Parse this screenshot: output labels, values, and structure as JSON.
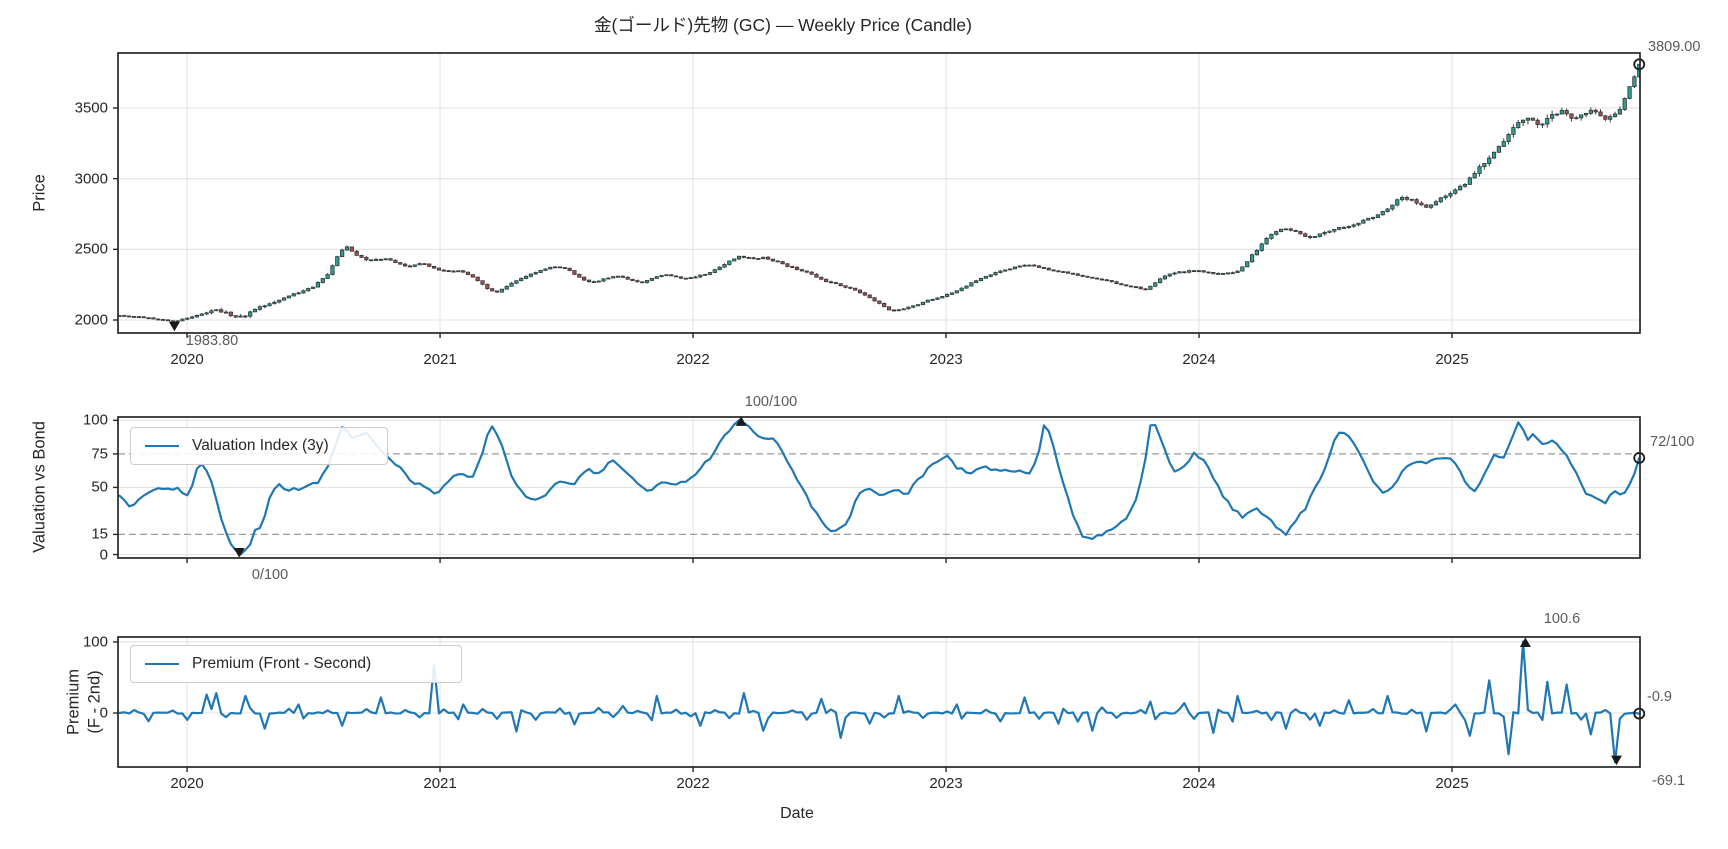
{
  "figure": {
    "title": "金(ゴールド)先物 (GC) — Weekly Price (Candle)",
    "xlabel": "Date",
    "background": "#ffffff",
    "accent_blue": "#1f77b4",
    "up_color": "#2f9e92",
    "down_color": "#a8524c",
    "wick_color": "#3c4043",
    "grid_color": "#e3e3e3",
    "dashed_color": "#9b9b9b",
    "spine_color": "#262626",
    "annotation_color": "#5a5a5a",
    "marker_color": "#1a1a1a"
  },
  "chart_data": [
    {
      "type": "candlestick",
      "title": "金(ゴールド)先物 (GC) — Weekly Price (Candle)",
      "ylabel": "Price",
      "freq": "weekly",
      "x_range": [
        2019.727,
        2025.743
      ],
      "ylim": [
        1908,
        3889
      ],
      "yticks": [
        2000,
        2500,
        3000,
        3500
      ],
      "xticks": [
        2020,
        2021,
        2022,
        2023,
        2024,
        2025
      ],
      "grid": true,
      "close_anchors": [
        [
          2019.73,
          2032
        ],
        [
          2019.78,
          2026
        ],
        [
          2019.84,
          2015
        ],
        [
          2019.9,
          2002
        ],
        [
          2019.95,
          1990
        ],
        [
          2020,
          2012
        ],
        [
          2020.06,
          2048
        ],
        [
          2020.12,
          2070
        ],
        [
          2020.18,
          2034
        ],
        [
          2020.22,
          2022
        ],
        [
          2020.28,
          2088
        ],
        [
          2020.35,
          2130
        ],
        [
          2020.42,
          2180
        ],
        [
          2020.5,
          2235
        ],
        [
          2020.56,
          2330
        ],
        [
          2020.6,
          2470
        ],
        [
          2020.63,
          2520
        ],
        [
          2020.67,
          2455
        ],
        [
          2020.72,
          2420
        ],
        [
          2020.78,
          2435
        ],
        [
          2020.83,
          2400
        ],
        [
          2020.88,
          2380
        ],
        [
          2020.93,
          2398
        ],
        [
          2020.98,
          2362
        ],
        [
          2021.03,
          2342
        ],
        [
          2021.08,
          2352
        ],
        [
          2021.13,
          2302
        ],
        [
          2021.18,
          2232
        ],
        [
          2021.22,
          2195
        ],
        [
          2021.28,
          2255
        ],
        [
          2021.34,
          2312
        ],
        [
          2021.4,
          2352
        ],
        [
          2021.45,
          2382
        ],
        [
          2021.5,
          2360
        ],
        [
          2021.55,
          2302
        ],
        [
          2021.6,
          2262
        ],
        [
          2021.65,
          2292
        ],
        [
          2021.7,
          2312
        ],
        [
          2021.75,
          2282
        ],
        [
          2021.8,
          2262
        ],
        [
          2021.85,
          2302
        ],
        [
          2021.9,
          2322
        ],
        [
          2021.95,
          2292
        ],
        [
          2022,
          2302
        ],
        [
          2022.06,
          2332
        ],
        [
          2022.12,
          2392
        ],
        [
          2022.18,
          2452
        ],
        [
          2022.23,
          2432
        ],
        [
          2022.28,
          2442
        ],
        [
          2022.33,
          2412
        ],
        [
          2022.39,
          2372
        ],
        [
          2022.45,
          2340
        ],
        [
          2022.51,
          2282
        ],
        [
          2022.57,
          2252
        ],
        [
          2022.63,
          2222
        ],
        [
          2022.68,
          2172
        ],
        [
          2022.73,
          2122
        ],
        [
          2022.78,
          2062
        ],
        [
          2022.83,
          2082
        ],
        [
          2022.88,
          2102
        ],
        [
          2022.93,
          2142
        ],
        [
          2022.98,
          2162
        ],
        [
          2023.04,
          2202
        ],
        [
          2023.09,
          2252
        ],
        [
          2023.15,
          2302
        ],
        [
          2023.21,
          2342
        ],
        [
          2023.27,
          2372
        ],
        [
          2023.33,
          2392
        ],
        [
          2023.39,
          2362
        ],
        [
          2023.45,
          2342
        ],
        [
          2023.51,
          2322
        ],
        [
          2023.57,
          2302
        ],
        [
          2023.63,
          2282
        ],
        [
          2023.69,
          2252
        ],
        [
          2023.75,
          2232
        ],
        [
          2023.79,
          2212
        ],
        [
          2023.84,
          2282
        ],
        [
          2023.89,
          2332
        ],
        [
          2023.94,
          2342
        ],
        [
          2023.99,
          2352
        ],
        [
          2024.05,
          2332
        ],
        [
          2024.1,
          2322
        ],
        [
          2024.16,
          2352
        ],
        [
          2024.22,
          2480
        ],
        [
          2024.28,
          2600
        ],
        [
          2024.33,
          2652
        ],
        [
          2024.38,
          2622
        ],
        [
          2024.44,
          2582
        ],
        [
          2024.5,
          2622
        ],
        [
          2024.56,
          2652
        ],
        [
          2024.62,
          2682
        ],
        [
          2024.68,
          2722
        ],
        [
          2024.74,
          2782
        ],
        [
          2024.8,
          2872
        ],
        [
          2024.85,
          2842
        ],
        [
          2024.9,
          2792
        ],
        [
          2024.95,
          2862
        ],
        [
          2025,
          2902
        ],
        [
          2025.05,
          2962
        ],
        [
          2025.1,
          3062
        ],
        [
          2025.15,
          3152
        ],
        [
          2025.2,
          3262
        ],
        [
          2025.25,
          3382
        ],
        [
          2025.3,
          3422
        ],
        [
          2025.35,
          3382
        ],
        [
          2025.4,
          3452
        ],
        [
          2025.44,
          3482
        ],
        [
          2025.48,
          3422
        ],
        [
          2025.52,
          3462
        ],
        [
          2025.56,
          3482
        ],
        [
          2025.6,
          3422
        ],
        [
          2025.64,
          3442
        ],
        [
          2025.67,
          3502
        ],
        [
          2025.7,
          3642
        ],
        [
          2025.72,
          3722
        ],
        [
          2025.74,
          3809
        ]
      ],
      "volatility_anchors": [
        [
          2019.73,
          0.45
        ],
        [
          2019.95,
          0.5
        ],
        [
          2020.18,
          1.7
        ],
        [
          2020.4,
          0.8
        ],
        [
          2020.63,
          1.1
        ],
        [
          2021,
          0.7
        ],
        [
          2021.5,
          0.7
        ],
        [
          2022.2,
          0.8
        ],
        [
          2022.8,
          0.7
        ],
        [
          2023.5,
          0.55
        ],
        [
          2024.2,
          0.9
        ],
        [
          2024.8,
          1
        ],
        [
          2025.3,
          1.9
        ],
        [
          2025.55,
          1.4
        ],
        [
          2025.74,
          1.2
        ]
      ],
      "markers": {
        "low": {
          "t": 2019.95,
          "value": 1983.8,
          "label": "1983.80"
        },
        "last": {
          "t": 2025.74,
          "value": 3809.0,
          "label": "3809.00"
        }
      }
    },
    {
      "type": "line",
      "name": "Valuation Index (3y)",
      "ylabel": "Valuation vs Bond",
      "ylim": [
        -2.6,
        102.5
      ],
      "yticks": [
        0,
        15,
        50,
        75,
        100
      ],
      "grid_yticks": [
        0,
        50,
        100
      ],
      "dashed_levels": [
        15,
        75
      ],
      "legend_position": "upper left",
      "anchors": [
        [
          2019.73,
          43
        ],
        [
          2019.78,
          36
        ],
        [
          2019.84,
          46
        ],
        [
          2019.9,
          50
        ],
        [
          2019.96,
          49
        ],
        [
          2020.01,
          44
        ],
        [
          2020.05,
          71
        ],
        [
          2020.09,
          58
        ],
        [
          2020.13,
          30
        ],
        [
          2020.17,
          8
        ],
        [
          2020.21,
          0
        ],
        [
          2020.24,
          3
        ],
        [
          2020.27,
          18
        ],
        [
          2020.3,
          22
        ],
        [
          2020.33,
          46
        ],
        [
          2020.36,
          52
        ],
        [
          2020.4,
          47
        ],
        [
          2020.44,
          49
        ],
        [
          2020.49,
          51
        ],
        [
          2020.53,
          56
        ],
        [
          2020.57,
          72
        ],
        [
          2020.61,
          97
        ],
        [
          2020.65,
          86
        ],
        [
          2020.7,
          92
        ],
        [
          2020.74,
          85
        ],
        [
          2020.79,
          73
        ],
        [
          2020.84,
          64
        ],
        [
          2020.89,
          55
        ],
        [
          2020.94,
          49
        ],
        [
          2020.99,
          46
        ],
        [
          2021.04,
          57
        ],
        [
          2021.08,
          62
        ],
        [
          2021.12,
          56
        ],
        [
          2021.16,
          70
        ],
        [
          2021.2,
          99
        ],
        [
          2021.24,
          85
        ],
        [
          2021.28,
          58
        ],
        [
          2021.33,
          45
        ],
        [
          2021.38,
          41
        ],
        [
          2021.43,
          47
        ],
        [
          2021.48,
          56
        ],
        [
          2021.53,
          53
        ],
        [
          2021.58,
          63
        ],
        [
          2021.63,
          60
        ],
        [
          2021.68,
          70
        ],
        [
          2021.73,
          63
        ],
        [
          2021.78,
          52
        ],
        [
          2021.83,
          46
        ],
        [
          2021.88,
          54
        ],
        [
          2021.93,
          52
        ],
        [
          2021.98,
          56
        ],
        [
          2022.04,
          66
        ],
        [
          2022.09,
          78
        ],
        [
          2022.14,
          92
        ],
        [
          2022.19,
          100
        ],
        [
          2022.23,
          93
        ],
        [
          2022.28,
          86
        ],
        [
          2022.32,
          88
        ],
        [
          2022.37,
          70
        ],
        [
          2022.42,
          54
        ],
        [
          2022.47,
          36
        ],
        [
          2022.52,
          20
        ],
        [
          2022.56,
          16
        ],
        [
          2022.61,
          22
        ],
        [
          2022.65,
          46
        ],
        [
          2022.7,
          48
        ],
        [
          2022.75,
          45
        ],
        [
          2022.8,
          47
        ],
        [
          2022.85,
          46
        ],
        [
          2022.9,
          58
        ],
        [
          2022.95,
          68
        ],
        [
          2023,
          73
        ],
        [
          2023.05,
          64
        ],
        [
          2023.1,
          60
        ],
        [
          2023.15,
          66
        ],
        [
          2023.21,
          61
        ],
        [
          2023.27,
          63
        ],
        [
          2023.33,
          60
        ],
        [
          2023.36,
          70
        ],
        [
          2023.39,
          98
        ],
        [
          2023.42,
          85
        ],
        [
          2023.46,
          55
        ],
        [
          2023.5,
          30
        ],
        [
          2023.54,
          14
        ],
        [
          2023.58,
          13
        ],
        [
          2023.62,
          15
        ],
        [
          2023.66,
          18
        ],
        [
          2023.7,
          24
        ],
        [
          2023.74,
          35
        ],
        [
          2023.78,
          60
        ],
        [
          2023.81,
          100
        ],
        [
          2023.84,
          92
        ],
        [
          2023.87,
          75
        ],
        [
          2023.9,
          62
        ],
        [
          2023.94,
          66
        ],
        [
          2023.98,
          75
        ],
        [
          2024.02,
          70
        ],
        [
          2024.06,
          55
        ],
        [
          2024.1,
          42
        ],
        [
          2024.14,
          32
        ],
        [
          2024.18,
          28
        ],
        [
          2024.22,
          34
        ],
        [
          2024.26,
          30
        ],
        [
          2024.3,
          22
        ],
        [
          2024.34,
          14
        ],
        [
          2024.38,
          24
        ],
        [
          2024.42,
          35
        ],
        [
          2024.46,
          50
        ],
        [
          2024.5,
          65
        ],
        [
          2024.54,
          88
        ],
        [
          2024.57,
          92
        ],
        [
          2024.61,
          84
        ],
        [
          2024.65,
          70
        ],
        [
          2024.69,
          55
        ],
        [
          2024.73,
          46
        ],
        [
          2024.77,
          50
        ],
        [
          2024.81,
          64
        ],
        [
          2024.85,
          70
        ],
        [
          2024.89,
          67
        ],
        [
          2024.93,
          70
        ],
        [
          2024.97,
          72
        ],
        [
          2025.01,
          70
        ],
        [
          2025.05,
          55
        ],
        [
          2025.09,
          46
        ],
        [
          2025.13,
          60
        ],
        [
          2025.17,
          75
        ],
        [
          2025.21,
          72
        ],
        [
          2025.26,
          100
        ],
        [
          2025.3,
          85
        ],
        [
          2025.33,
          90
        ],
        [
          2025.36,
          80
        ],
        [
          2025.4,
          85
        ],
        [
          2025.44,
          78
        ],
        [
          2025.48,
          64
        ],
        [
          2025.52,
          48
        ],
        [
          2025.56,
          42
        ],
        [
          2025.6,
          38
        ],
        [
          2025.64,
          46
        ],
        [
          2025.68,
          44
        ],
        [
          2025.71,
          55
        ],
        [
          2025.74,
          72
        ]
      ],
      "markers": {
        "min": {
          "t": 2020.206,
          "value": 0,
          "label": "0/100"
        },
        "max": {
          "t": 2022.19,
          "value": 100,
          "label": "100/100"
        },
        "last": {
          "t": 2025.74,
          "value": 72,
          "label": "72/100"
        }
      }
    },
    {
      "type": "line",
      "name": "Premium (Front - Second)",
      "ylabel": "Premium (F - 2nd)",
      "ylabel_lines": [
        "Premium",
        "(F - 2nd)"
      ],
      "xlabel": "Date",
      "ylim": [
        -76,
        107
      ],
      "yticks": [
        0,
        100
      ],
      "grid_yticks": [
        0,
        100
      ],
      "baseline": 0,
      "legend_position": "upper left",
      "roll_texture": {
        "period_weeks": 8,
        "bump": 4,
        "dip": -9
      },
      "spikes": [
        [
          2020.08,
          26
        ],
        [
          2020.12,
          28
        ],
        [
          2020.23,
          24
        ],
        [
          2020.31,
          -22
        ],
        [
          2020.45,
          12
        ],
        [
          2020.62,
          -18
        ],
        [
          2020.76,
          22
        ],
        [
          2020.98,
          68
        ],
        [
          2021.1,
          12
        ],
        [
          2021.31,
          -26
        ],
        [
          2021.53,
          -16
        ],
        [
          2021.72,
          10
        ],
        [
          2021.85,
          24
        ],
        [
          2022.03,
          -18
        ],
        [
          2022.2,
          28
        ],
        [
          2022.27,
          -25
        ],
        [
          2022.5,
          20
        ],
        [
          2022.58,
          -35
        ],
        [
          2022.7,
          -15
        ],
        [
          2022.82,
          24
        ],
        [
          2023.05,
          12
        ],
        [
          2023.31,
          22
        ],
        [
          2023.45,
          -15
        ],
        [
          2023.57,
          -25
        ],
        [
          2023.8,
          16
        ],
        [
          2023.95,
          14
        ],
        [
          2024.05,
          -28
        ],
        [
          2024.16,
          24
        ],
        [
          2024.35,
          -22
        ],
        [
          2024.48,
          -18
        ],
        [
          2024.6,
          18
        ],
        [
          2024.75,
          24
        ],
        [
          2024.89,
          -26
        ],
        [
          2025.02,
          12
        ],
        [
          2025.07,
          -32
        ],
        [
          2025.15,
          46
        ],
        [
          2025.23,
          -58
        ],
        [
          2025.29,
          100.6
        ],
        [
          2025.38,
          44
        ],
        [
          2025.45,
          40
        ],
        [
          2025.55,
          -30
        ],
        [
          2025.65,
          -69.1
        ]
      ],
      "markers": {
        "max": {
          "t": 2025.29,
          "value": 100.6,
          "label": "100.6"
        },
        "min": {
          "t": 2025.65,
          "value": -69.1,
          "label": "-69.1"
        },
        "last": {
          "t": 2025.74,
          "value": -0.9,
          "label": "-0.9"
        }
      }
    }
  ]
}
